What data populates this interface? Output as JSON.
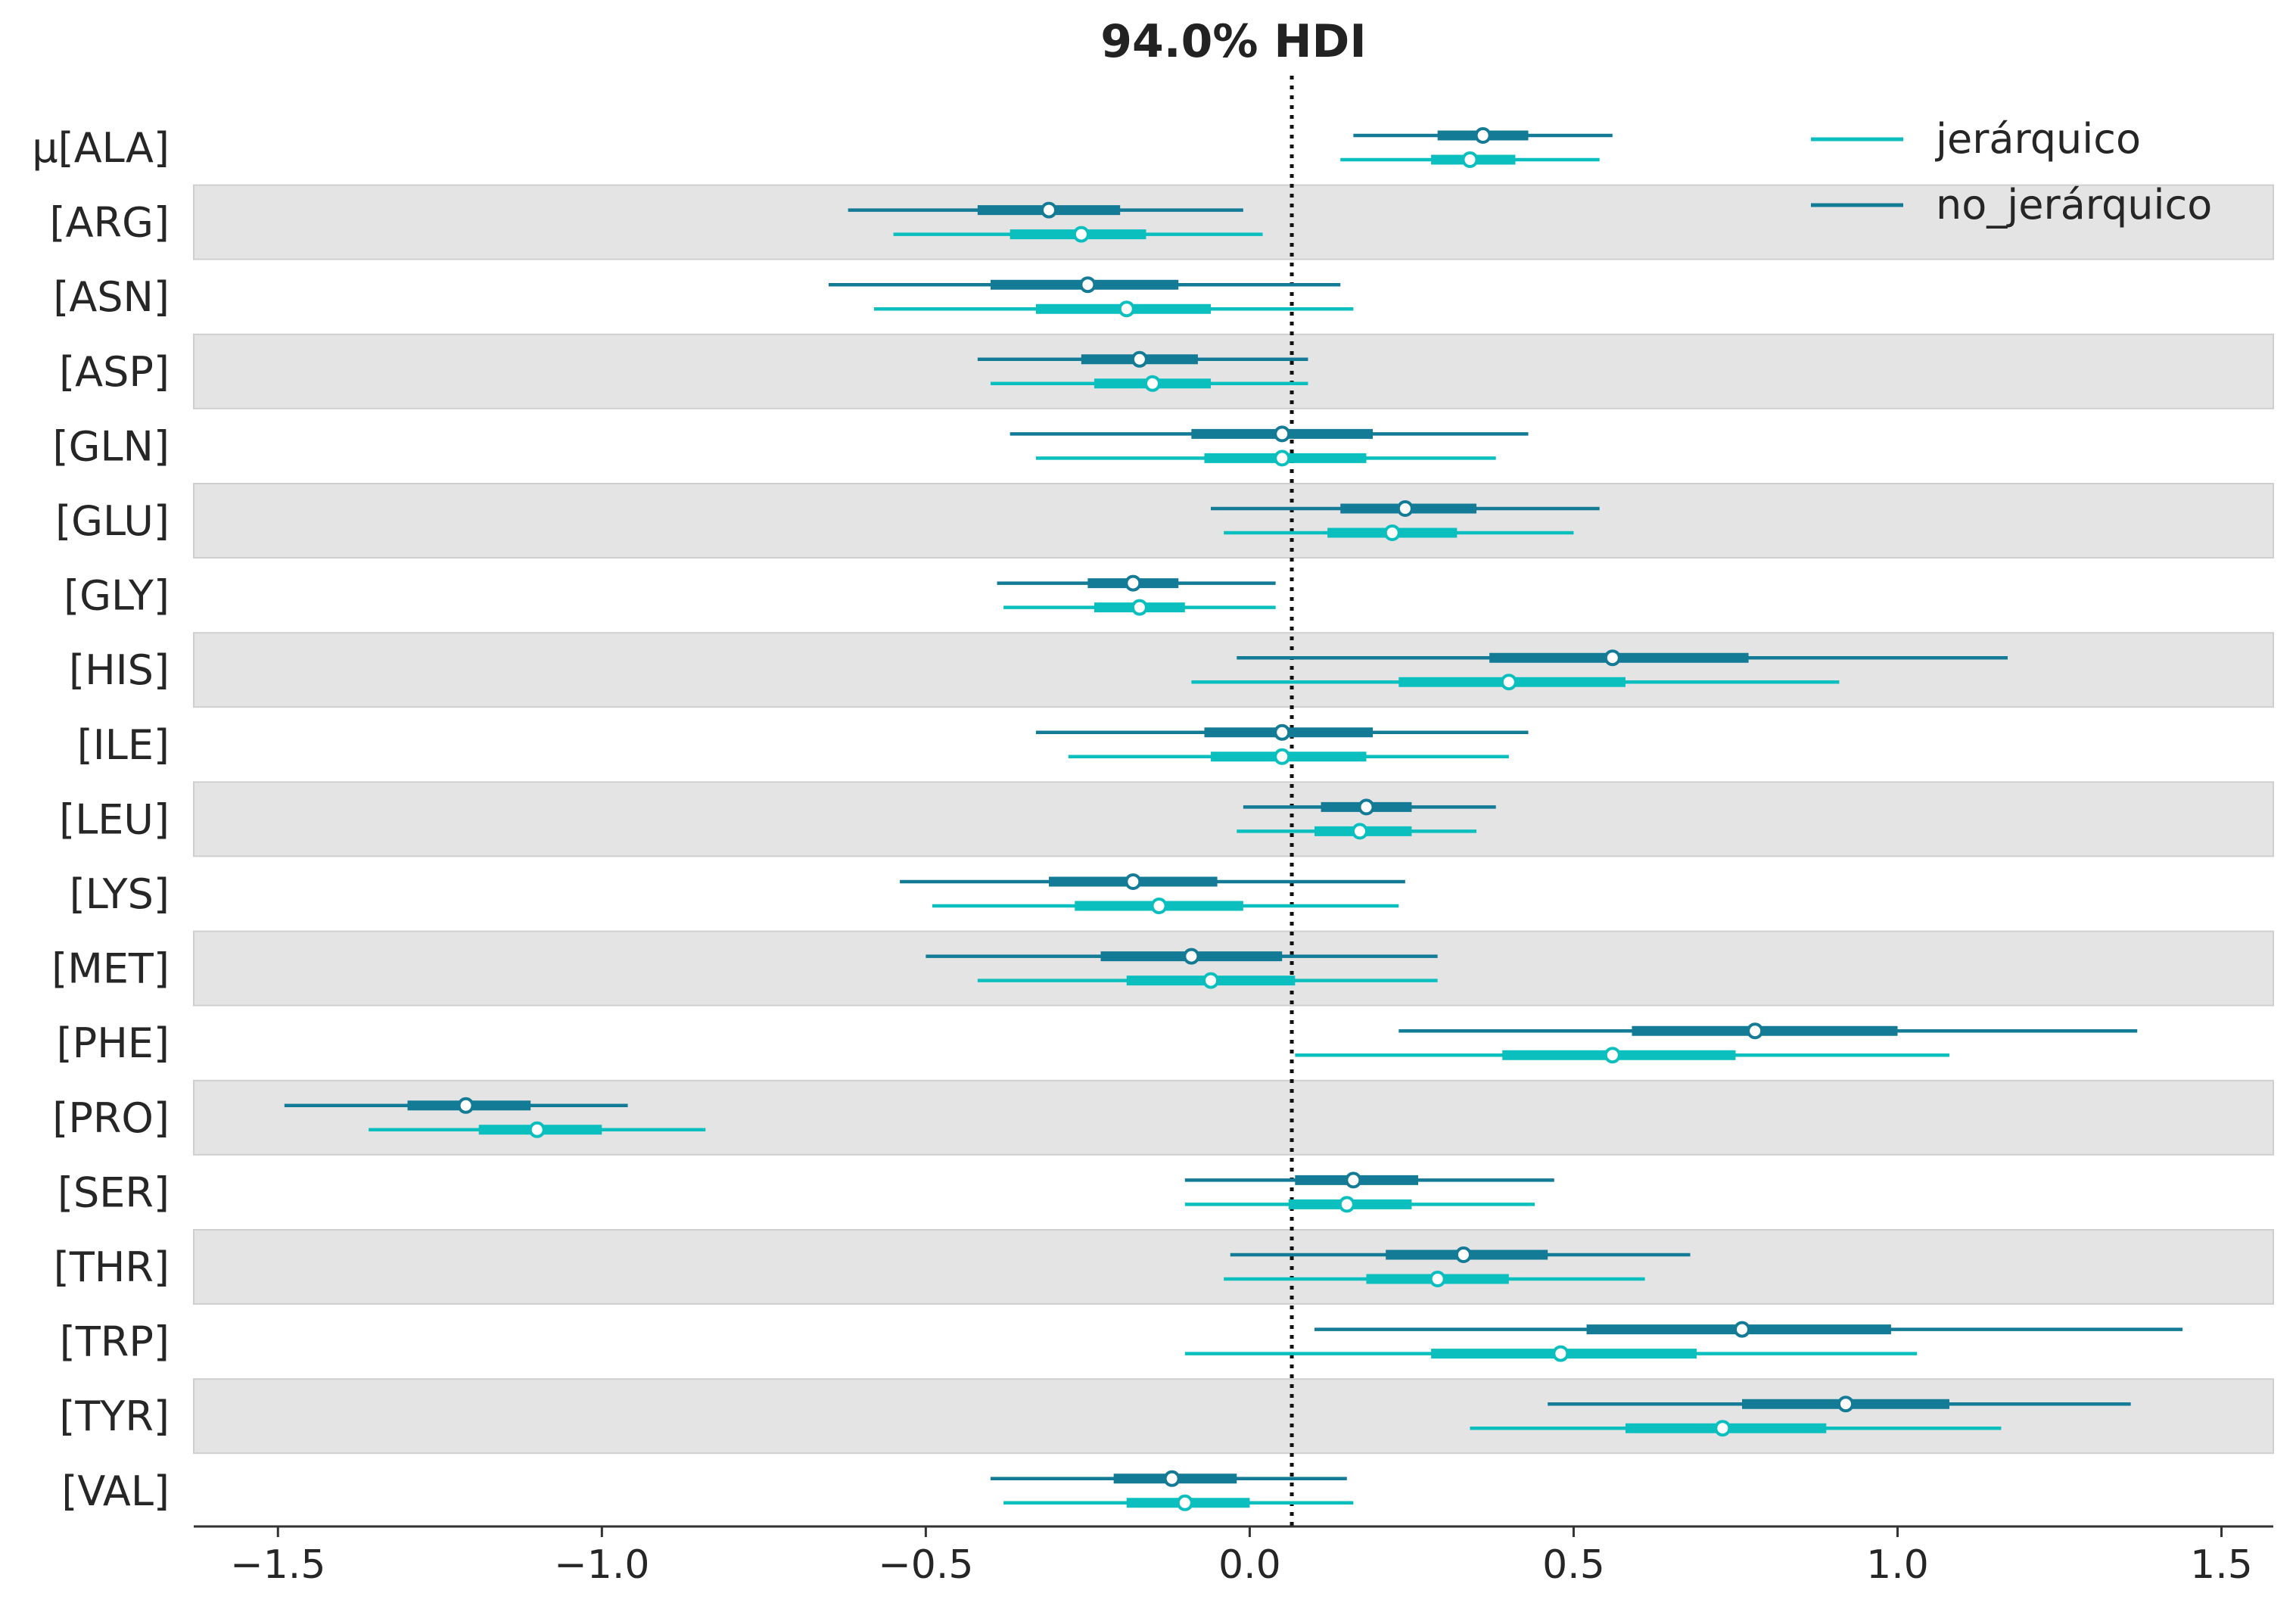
{
  "chart_data": {
    "type": "forest",
    "title": "94.0% HDI",
    "reference_line": 0.065,
    "xlim": [
      -1.63,
      1.58
    ],
    "xticks": [
      -1.5,
      -1.0,
      -0.5,
      0.0,
      0.5,
      1.0,
      1.5
    ],
    "xtick_labels": [
      "−1.5",
      "−1.0",
      "−0.5",
      "0.0",
      "0.5",
      "1.0",
      "1.5"
    ],
    "grid": false,
    "legend_position": "top-right",
    "colors": {
      "jerarquico": "#0bbfbf",
      "no_jerarquico": "#137b96",
      "band": "#e4e4e4",
      "band_edge": "#cfcfcf",
      "axis": "#333333"
    },
    "labels": [
      "μ[ALA]",
      "[ARG]",
      "[ASN]",
      "[ASP]",
      "[GLN]",
      "[GLU]",
      "[GLY]",
      "[HIS]",
      "[ILE]",
      "[LEU]",
      "[LYS]",
      "[MET]",
      "[PHE]",
      "[PRO]",
      "[SER]",
      "[THR]",
      "[TRP]",
      "[TYR]",
      "[VAL]"
    ],
    "series": [
      {
        "name": "no_jerárquico",
        "key": "no_jerarquico",
        "median": [
          0.36,
          -0.31,
          -0.25,
          -0.17,
          0.05,
          0.24,
          -0.18,
          0.56,
          0.05,
          0.18,
          -0.18,
          -0.09,
          0.78,
          -1.21,
          0.16,
          0.33,
          0.76,
          0.92,
          -0.12
        ],
        "hdi94": [
          [
            0.16,
            0.56
          ],
          [
            -0.62,
            -0.01
          ],
          [
            -0.65,
            0.14
          ],
          [
            -0.42,
            0.09
          ],
          [
            -0.37,
            0.43
          ],
          [
            -0.06,
            0.54
          ],
          [
            -0.39,
            0.04
          ],
          [
            -0.02,
            1.17
          ],
          [
            -0.33,
            0.43
          ],
          [
            -0.01,
            0.38
          ],
          [
            -0.54,
            0.24
          ],
          [
            -0.5,
            0.29
          ],
          [
            0.23,
            1.37
          ],
          [
            -1.49,
            -0.96
          ],
          [
            -0.1,
            0.47
          ],
          [
            -0.03,
            0.68
          ],
          [
            0.1,
            1.44
          ],
          [
            0.46,
            1.36
          ],
          [
            -0.4,
            0.15
          ]
        ],
        "hdi50": [
          [
            0.29,
            0.43
          ],
          [
            -0.42,
            -0.2
          ],
          [
            -0.4,
            -0.11
          ],
          [
            -0.26,
            -0.08
          ],
          [
            -0.09,
            0.19
          ],
          [
            0.14,
            0.35
          ],
          [
            -0.25,
            -0.11
          ],
          [
            0.37,
            0.77
          ],
          [
            -0.07,
            0.19
          ],
          [
            0.11,
            0.25
          ],
          [
            -0.31,
            -0.05
          ],
          [
            -0.23,
            0.05
          ],
          [
            0.59,
            1.0
          ],
          [
            -1.3,
            -1.11
          ],
          [
            0.07,
            0.26
          ],
          [
            0.21,
            0.46
          ],
          [
            0.52,
            0.99
          ],
          [
            0.76,
            1.08
          ],
          [
            -0.21,
            -0.02
          ]
        ]
      },
      {
        "name": "jerárquico",
        "key": "jerarquico",
        "median": [
          0.34,
          -0.26,
          -0.19,
          -0.15,
          0.05,
          0.22,
          -0.17,
          0.4,
          0.05,
          0.17,
          -0.14,
          -0.06,
          0.56,
          -1.1,
          0.15,
          0.29,
          0.48,
          0.73,
          -0.1
        ],
        "hdi94": [
          [
            0.14,
            0.54
          ],
          [
            -0.55,
            0.02
          ],
          [
            -0.58,
            0.16
          ],
          [
            -0.4,
            0.09
          ],
          [
            -0.33,
            0.38
          ],
          [
            -0.04,
            0.5
          ],
          [
            -0.38,
            0.04
          ],
          [
            -0.09,
            0.91
          ],
          [
            -0.28,
            0.4
          ],
          [
            -0.02,
            0.35
          ],
          [
            -0.49,
            0.23
          ],
          [
            -0.42,
            0.29
          ],
          [
            0.07,
            1.08
          ],
          [
            -1.36,
            -0.84
          ],
          [
            -0.1,
            0.44
          ],
          [
            -0.04,
            0.61
          ],
          [
            -0.1,
            1.03
          ],
          [
            0.34,
            1.16
          ],
          [
            -0.38,
            0.16
          ]
        ],
        "hdi50": [
          [
            0.28,
            0.41
          ],
          [
            -0.37,
            -0.16
          ],
          [
            -0.33,
            -0.06
          ],
          [
            -0.24,
            -0.06
          ],
          [
            -0.07,
            0.18
          ],
          [
            0.12,
            0.32
          ],
          [
            -0.24,
            -0.1
          ],
          [
            0.23,
            0.58
          ],
          [
            -0.06,
            0.18
          ],
          [
            0.1,
            0.25
          ],
          [
            -0.27,
            -0.01
          ],
          [
            -0.19,
            0.07
          ],
          [
            0.39,
            0.75
          ],
          [
            -1.19,
            -1.0
          ],
          [
            0.06,
            0.25
          ],
          [
            0.18,
            0.4
          ],
          [
            0.28,
            0.69
          ],
          [
            0.58,
            0.89
          ],
          [
            -0.19,
            0.0
          ]
        ]
      }
    ],
    "legend": [
      {
        "label": "jerárquico",
        "key": "jerarquico"
      },
      {
        "label": "no_jerárquico",
        "key": "no_jerarquico"
      }
    ]
  }
}
